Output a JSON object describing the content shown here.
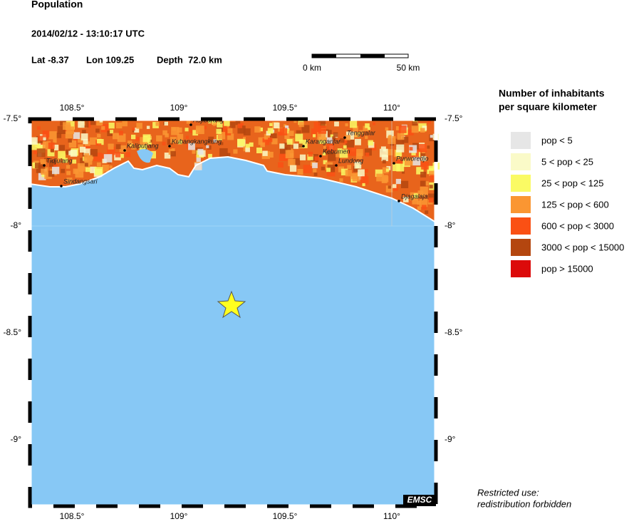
{
  "header": {
    "title": "Population",
    "datetime": "2014/02/12 - 13:10:17 UTC",
    "lat": "Lat -8.37",
    "lon": "Lon 109.25",
    "depth": "Depth  72.0 km"
  },
  "scale_bar": {
    "start": "0 km",
    "end": "50 km"
  },
  "map": {
    "lon_ticks": [
      "108.5°",
      "109°",
      "109.5°",
      "110°"
    ],
    "lat_ticks": [
      "-7.5°",
      "-8°",
      "-8.5°",
      "-9°"
    ],
    "towns": [
      "Tidjulang",
      "Sindangsari",
      "Kaliputjang",
      "Kubangkangkung",
      "Adjibarang",
      "Karanganjar",
      "Tenggalar",
      "Kebumen",
      "Lundong",
      "Purworedjo",
      "Djagalaja"
    ],
    "badge": "EMSC"
  },
  "legend": {
    "title": [
      "Number of inhabitants",
      "per square kilometer"
    ],
    "items": [
      {
        "label": "pop < 5",
        "color": "#e6e6e6"
      },
      {
        "label": "5 < pop < 25",
        "color": "#fafac8"
      },
      {
        "label": "25 < pop < 125",
        "color": "#fafa64"
      },
      {
        "label": "125 < pop < 600",
        "color": "#fa9632"
      },
      {
        "label": "600 < pop < 3000",
        "color": "#fa5014"
      },
      {
        "label": "3000 < pop < 15000",
        "color": "#b4460f"
      },
      {
        "label": "pop > 15000",
        "color": "#dc0a0a"
      }
    ]
  },
  "footer": [
    "Restricted use:",
    "redistribution forbidden"
  ]
}
